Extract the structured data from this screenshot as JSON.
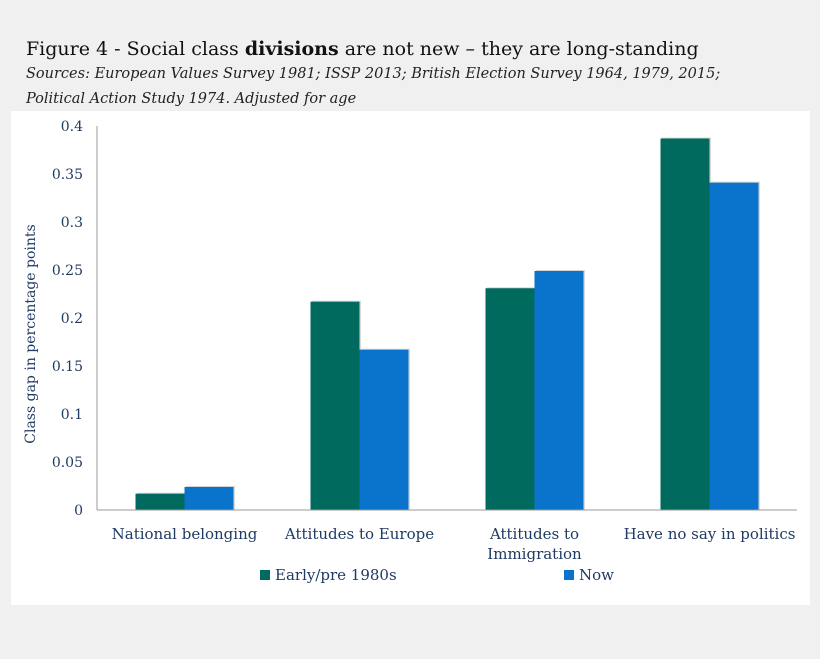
{
  "header": {
    "title_prefix": "Figure 4 - Social class ",
    "title_bold": "divisions",
    "title_suffix": " are not new – they are long-standing",
    "subtitle_line1": "Sources: European Values Survey 1981; ISSP 2013; British Election Survey 1964, 1979, 2015;",
    "subtitle_line2": "Political Action Study 1974. Adjusted for age"
  },
  "colors": {
    "early": "#006a5e",
    "now": "#0a73cc",
    "axis_text": "#1f3a63"
  },
  "chart_data": {
    "type": "bar",
    "title": "Figure 4 - Social class divisions are not new – they are long-standing",
    "xlabel": "",
    "ylabel": "Class gap in percentage points",
    "ylim": [
      0,
      0.4
    ],
    "yticks": [
      0,
      0.05,
      0.1,
      0.15,
      0.2,
      0.25,
      0.3,
      0.35,
      0.4
    ],
    "ytick_labels": [
      "0",
      "0.05",
      "0.1",
      "0.15",
      "0.2",
      "0.25",
      "0.3",
      "0.35",
      "0.4"
    ],
    "grid": false,
    "legend_position": "bottom-center",
    "categories": [
      [
        "National belonging"
      ],
      [
        "Attitudes to Europe"
      ],
      [
        "Attitudes to",
        "Immigration"
      ],
      [
        "Have no say in politics"
      ]
    ],
    "series": [
      {
        "name": "Early/pre 1980s",
        "values": [
          0.017,
          0.217,
          0.231,
          0.387
        ]
      },
      {
        "name": "Now",
        "values": [
          0.024,
          0.167,
          0.249,
          0.341
        ]
      }
    ]
  }
}
